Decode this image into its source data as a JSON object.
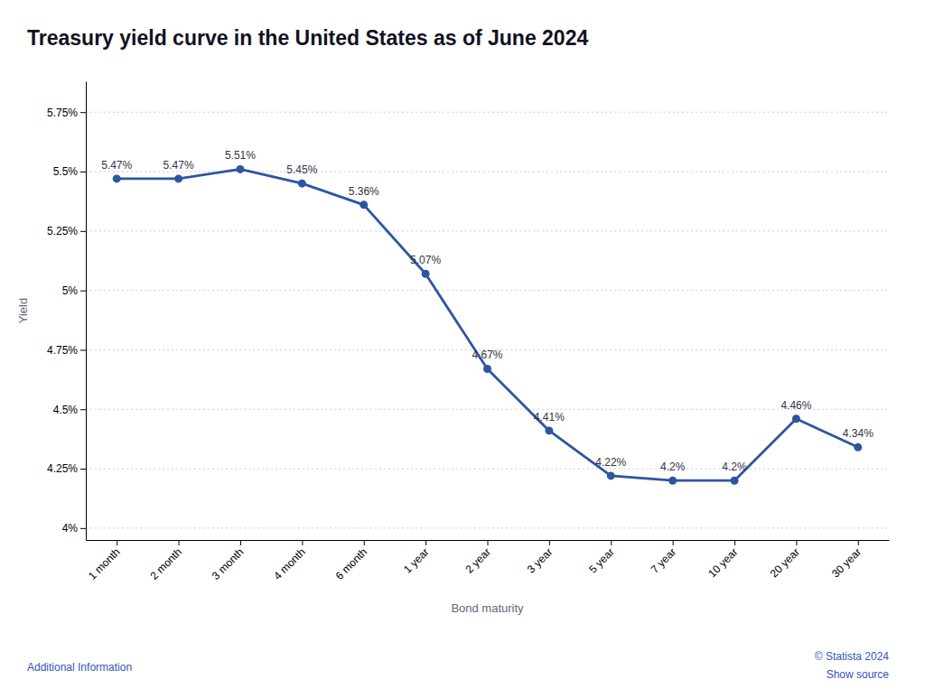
{
  "chart_data": {
    "type": "line",
    "title": "Treasury yield curve in the United States as of June 2024",
    "x_label": "Bond maturity",
    "y_label": "Yield",
    "categories": [
      "1 month",
      "2 month",
      "3 month",
      "4 month",
      "6 month",
      "1 year",
      "2 year",
      "3 year",
      "5 year",
      "7 year",
      "10 year",
      "20 year",
      "30 year"
    ],
    "values": [
      5.47,
      5.47,
      5.51,
      5.45,
      5.36,
      5.07,
      4.67,
      4.41,
      4.22,
      4.2,
      4.2,
      4.46,
      4.34
    ],
    "value_labels": [
      "5.47%",
      "5.47%",
      "5.51%",
      "5.45%",
      "5.36%",
      "5.07%",
      "4.67%",
      "4.41%",
      "4.22%",
      "4.2%",
      "4.2%",
      "4.46%",
      "4.34%"
    ],
    "ylim": [
      3.95,
      5.88
    ],
    "yticks": [
      {
        "value": 4.0,
        "label": "4%"
      },
      {
        "value": 4.25,
        "label": "4.25%"
      },
      {
        "value": 4.5,
        "label": "4.5%"
      },
      {
        "value": 4.75,
        "label": "4.75%"
      },
      {
        "value": 5.0,
        "label": "5%"
      },
      {
        "value": 5.25,
        "label": "5.25%"
      },
      {
        "value": 5.5,
        "label": "5.5%"
      },
      {
        "value": 5.75,
        "label": "5.75%"
      }
    ],
    "color": "#2e55a0",
    "marker": "circle",
    "grid": true,
    "data_labels": true,
    "annotations": [
      "Additional Information",
      "© Statista 2024",
      "Show source"
    ]
  }
}
